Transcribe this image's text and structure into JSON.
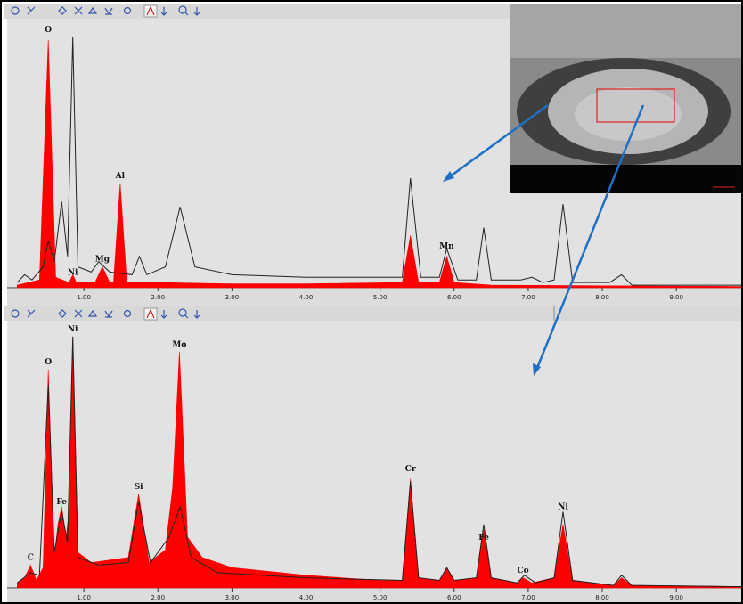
{
  "chart_data": [
    {
      "type": "spectrum",
      "xlim": [
        0,
        9.9
      ],
      "ylim": [
        0,
        100
      ],
      "xticks": [
        {
          "value": 1,
          "label": "1.00"
        },
        {
          "value": 2,
          "label": "2.00"
        },
        {
          "value": 3,
          "label": "3.00"
        },
        {
          "value": 4,
          "label": "4.00"
        },
        {
          "value": 5,
          "label": "5.00"
        },
        {
          "value": 6,
          "label": "6.00"
        },
        {
          "value": 7,
          "label": "7.00"
        },
        {
          "value": 8,
          "label": "8.00"
        },
        {
          "value": 9,
          "label": "9.00"
        }
      ],
      "series": [
        {
          "color": "#ff0000",
          "x": [
            0.1,
            0.4,
            0.52,
            0.62,
            0.8,
            0.85,
            0.9,
            1.15,
            1.25,
            1.35,
            1.4,
            1.49,
            1.58,
            2.0,
            3.0,
            4.0,
            5.3,
            5.41,
            5.52,
            5.8,
            5.9,
            6.0,
            6.5,
            9.9
          ],
          "values": [
            1,
            3,
            95,
            4,
            2,
            5,
            2,
            2,
            8,
            2,
            2,
            40,
            2,
            2,
            1.5,
            1.5,
            2,
            20,
            2,
            2,
            12,
            2,
            1,
            0.5
          ]
        },
        {
          "color": "#222222",
          "x": [
            0.1,
            0.2,
            0.3,
            0.45,
            0.52,
            0.6,
            0.7,
            0.78,
            0.85,
            0.92,
            1.1,
            1.2,
            1.35,
            1.65,
            1.75,
            1.85,
            2.1,
            2.3,
            2.5,
            3.0,
            4.0,
            5.3,
            5.41,
            5.55,
            5.8,
            5.9,
            6.05,
            6.3,
            6.4,
            6.5,
            6.9,
            7.05,
            7.2,
            7.35,
            7.47,
            7.6,
            8.1,
            8.26,
            8.4,
            9.9
          ],
          "values": [
            2,
            5,
            3,
            8,
            18,
            10,
            33,
            12,
            96,
            8,
            6,
            10,
            6,
            5,
            12,
            5,
            8,
            31,
            8,
            5,
            4,
            4,
            42,
            4,
            4,
            15,
            3,
            3,
            23,
            3,
            3,
            4,
            2,
            3,
            32,
            2,
            2,
            5,
            1,
            1
          ]
        }
      ],
      "annotations": [
        {
          "text": "O",
          "x": 0.52,
          "y": 98
        },
        {
          "text": "Ni",
          "x": 0.85,
          "y": 5
        },
        {
          "text": "Mg",
          "x": 1.25,
          "y": 10
        },
        {
          "text": "Al",
          "x": 1.49,
          "y": 42
        },
        {
          "text": "Mn",
          "x": 5.9,
          "y": 15
        }
      ]
    },
    {
      "type": "spectrum",
      "xlim": [
        0,
        9.9
      ],
      "ylim": [
        0,
        100
      ],
      "xticks": [
        {
          "value": 1,
          "label": "1.00"
        },
        {
          "value": 2,
          "label": "2.00"
        },
        {
          "value": 3,
          "label": "3.00"
        },
        {
          "value": 4,
          "label": "4.00"
        },
        {
          "value": 5,
          "label": "5.00"
        },
        {
          "value": 6,
          "label": "6.00"
        },
        {
          "value": 7,
          "label": "7.00"
        },
        {
          "value": 8,
          "label": "8.00"
        },
        {
          "value": 9,
          "label": "9.00"
        }
      ],
      "series": [
        {
          "color": "#ff0000",
          "x": [
            0.1,
            0.2,
            0.28,
            0.36,
            0.45,
            0.52,
            0.6,
            0.65,
            0.7,
            0.76,
            0.8,
            0.85,
            0.92,
            1.1,
            1.6,
            1.74,
            1.88,
            2.1,
            2.2,
            2.29,
            2.4,
            2.6,
            3.0,
            4.0,
            5.0,
            5.3,
            5.41,
            5.52,
            5.8,
            5.9,
            6.0,
            6.3,
            6.4,
            6.5,
            6.85,
            6.93,
            7.05,
            7.35,
            7.47,
            7.6,
            8.15,
            8.26,
            8.4,
            9.9
          ],
          "values": [
            2,
            4,
            9,
            3,
            8,
            86,
            12,
            25,
            32,
            20,
            30,
            99,
            14,
            10,
            12,
            37,
            10,
            15,
            40,
            93,
            20,
            12,
            8,
            5,
            3,
            3,
            43,
            4,
            3,
            8,
            3,
            4,
            23,
            4,
            2,
            4,
            2,
            4,
            25,
            3,
            1,
            4,
            1,
            0.5
          ]
        },
        {
          "color": "#222222",
          "x": [
            0.1,
            0.28,
            0.4,
            0.52,
            0.6,
            0.7,
            0.78,
            0.85,
            0.92,
            1.2,
            1.6,
            1.74,
            1.9,
            2.15,
            2.3,
            2.45,
            2.8,
            4.0,
            5.3,
            5.41,
            5.52,
            5.8,
            5.9,
            6.0,
            6.3,
            6.4,
            6.5,
            6.85,
            6.95,
            7.1,
            7.35,
            7.47,
            7.6,
            8.15,
            8.26,
            8.4,
            9.9
          ],
          "values": [
            2,
            6,
            5,
            80,
            14,
            30,
            18,
            99,
            12,
            9,
            10,
            34,
            10,
            20,
            32,
            12,
            6,
            4,
            3,
            42,
            4,
            3,
            8,
            3,
            4,
            25,
            4,
            2,
            5,
            2,
            4,
            30,
            3,
            1,
            5,
            1,
            0.5
          ]
        }
      ],
      "annotations": [
        {
          "text": "C",
          "x": 0.28,
          "y": 11
        },
        {
          "text": "O",
          "x": 0.52,
          "y": 88
        },
        {
          "text": "Fe",
          "x": 0.7,
          "y": 33
        },
        {
          "text": "Ni",
          "x": 0.85,
          "y": 101
        },
        {
          "text": "Si",
          "x": 1.74,
          "y": 39
        },
        {
          "text": "Mo",
          "x": 2.29,
          "y": 95
        },
        {
          "text": "Cr",
          "x": 5.41,
          "y": 46
        },
        {
          "text": "Fe",
          "x": 6.4,
          "y": 19
        },
        {
          "text": "Co",
          "x": 6.93,
          "y": 6
        },
        {
          "text": "Ni",
          "x": 7.47,
          "y": 31
        }
      ]
    }
  ]
}
